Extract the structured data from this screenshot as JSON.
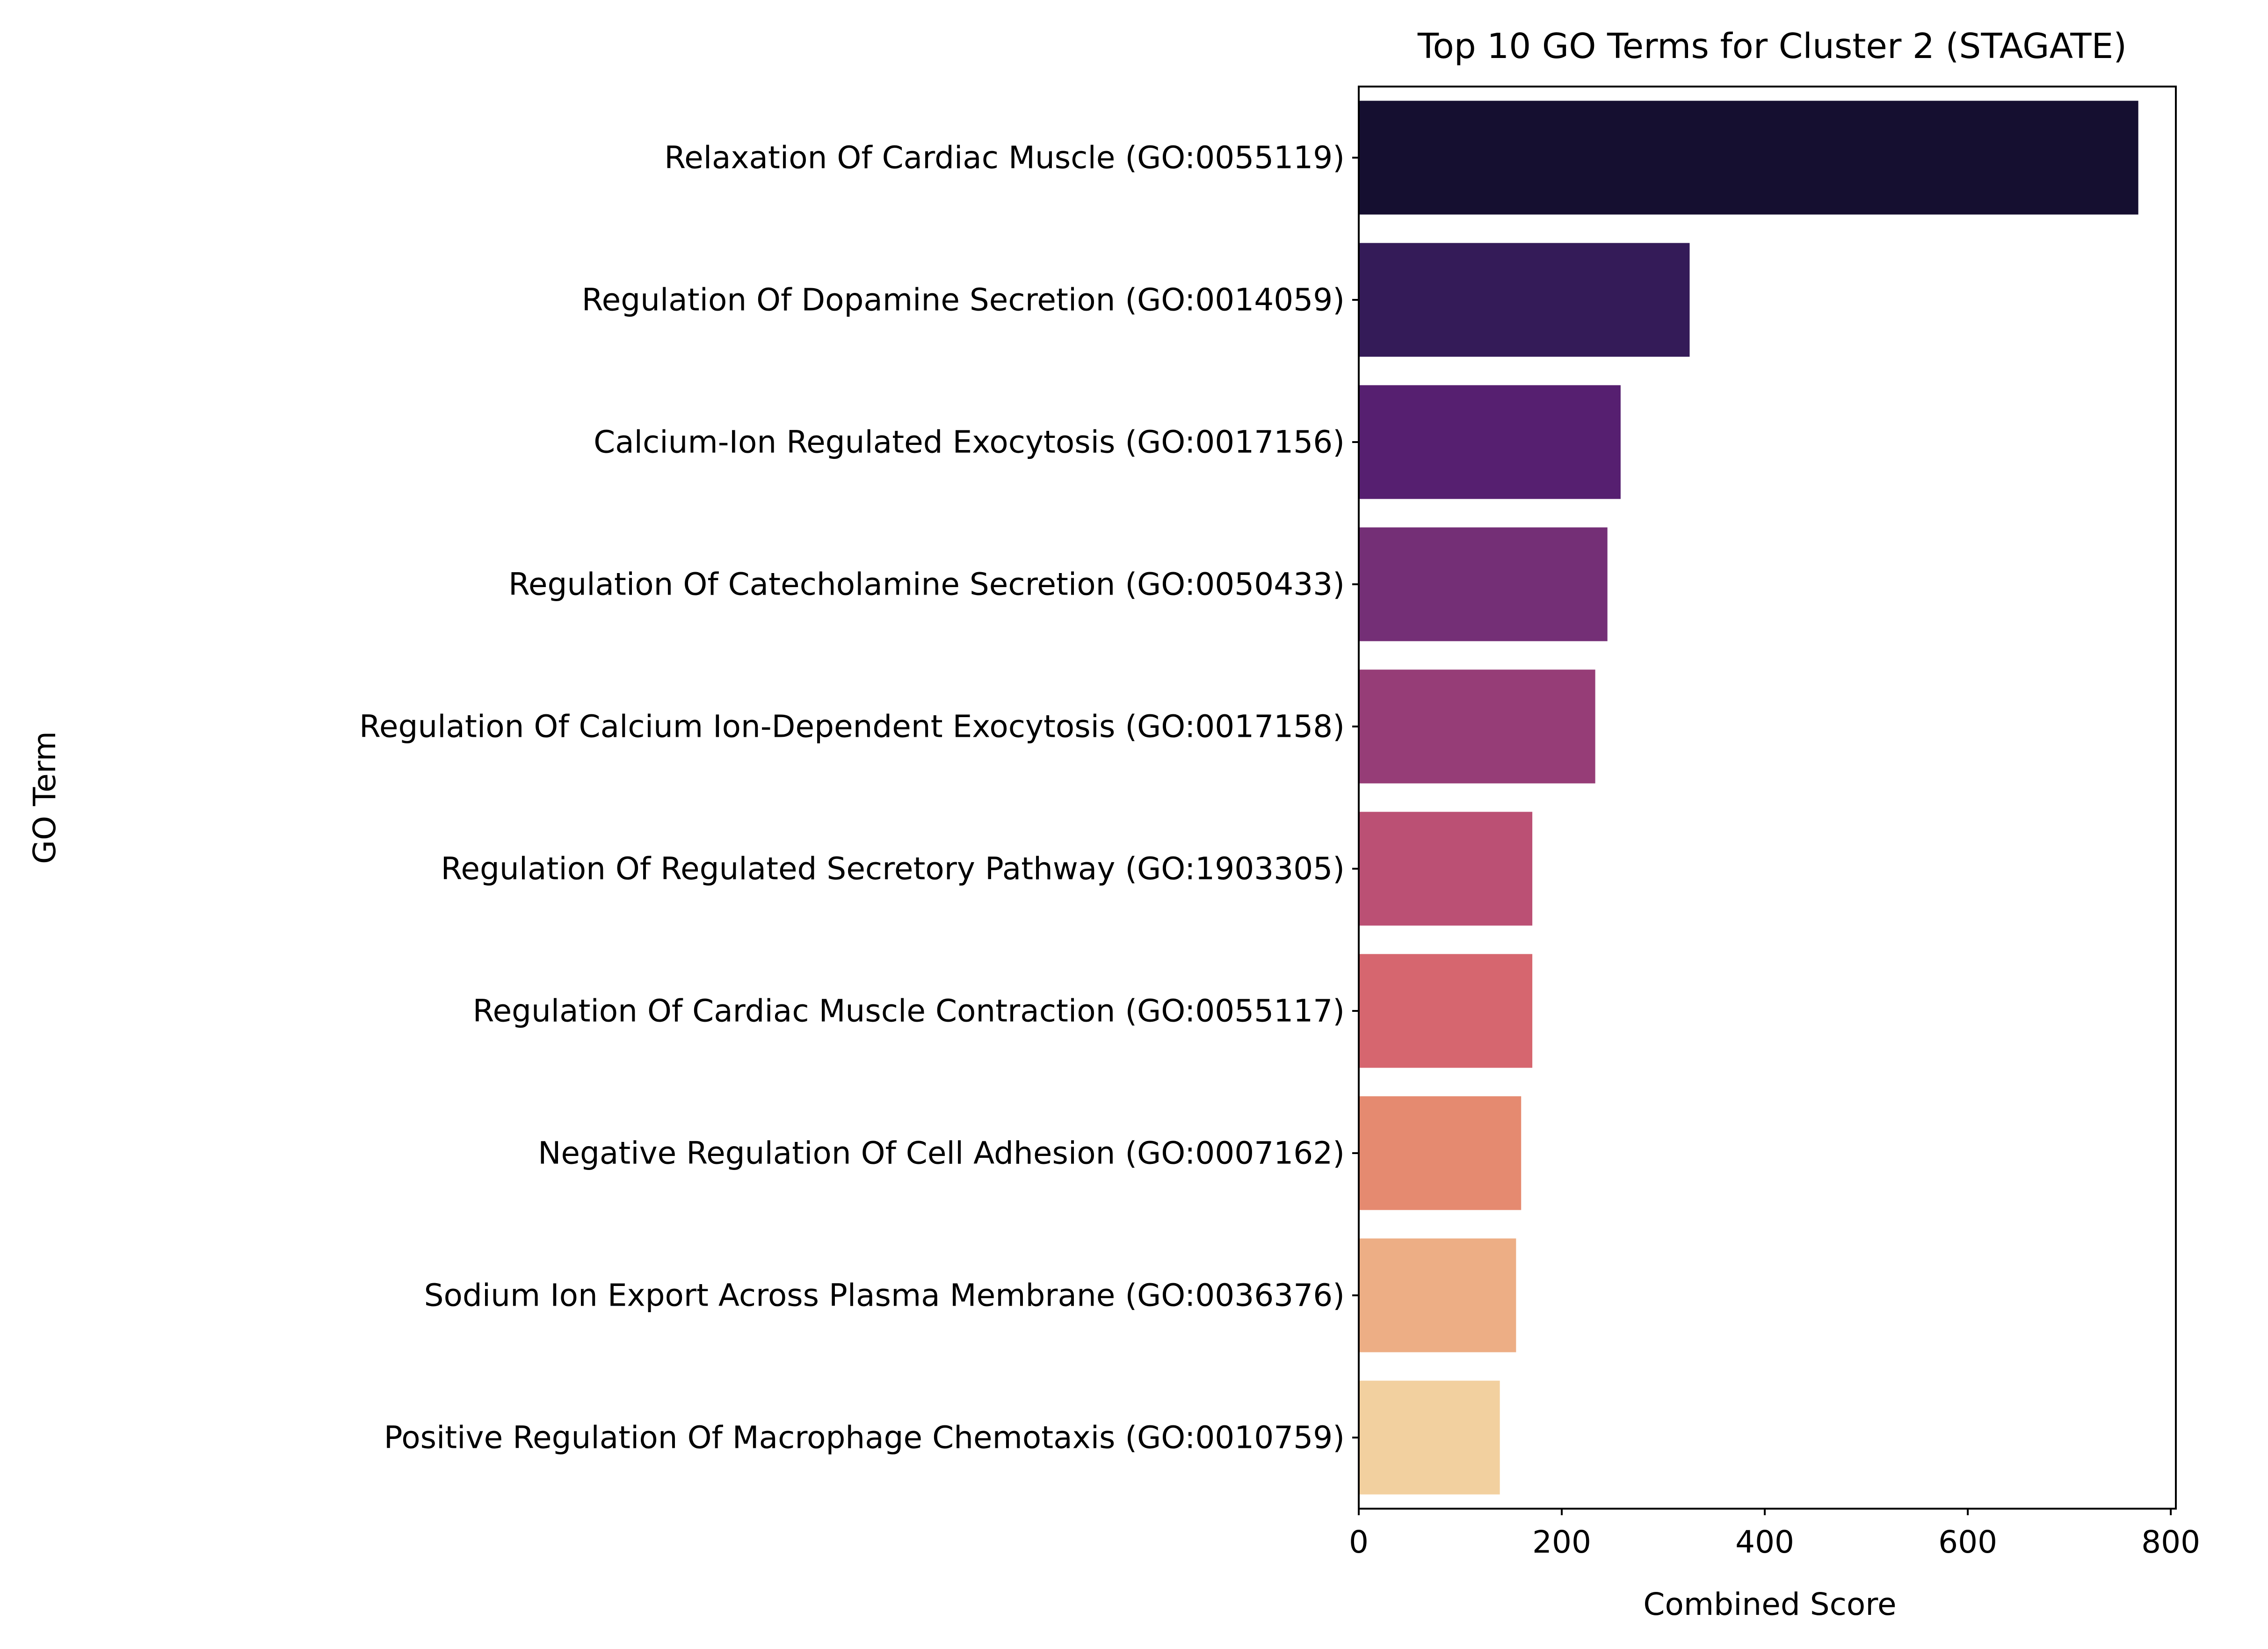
{
  "chart_data": {
    "type": "bar",
    "orientation": "horizontal",
    "title": "Top 10 GO Terms for Cluster 2 (STAGATE)",
    "xlabel": "Combined Score",
    "ylabel": "GO Term",
    "xlim": [
      0,
      805
    ],
    "xticks": [
      "0",
      "200",
      "400",
      "600",
      "800"
    ],
    "grid": false,
    "categories": [
      "Relaxation Of Cardiac Muscle (GO:0055119)",
      "Regulation Of Dopamine Secretion (GO:0014059)",
      "Calcium-Ion Regulated Exocytosis (GO:0017156)",
      "Regulation Of Catecholamine Secretion (GO:0050433)",
      "Regulation Of Calcium Ion-Dependent Exocytosis (GO:0017158)",
      "Regulation Of Regulated Secretory Pathway (GO:1903305)",
      "Regulation Of Cardiac Muscle Contraction (GO:0055117)",
      "Negative Regulation Of Cell Adhesion (GO:0007162)",
      "Sodium Ion Export Across Plasma Membrane (GO:0036376)",
      "Positive Regulation Of Macrophage Chemotaxis (GO:0010759)"
    ],
    "values": [
      768,
      326,
      258,
      245,
      233,
      171,
      171,
      160,
      155,
      139
    ],
    "colors": [
      "#150f30",
      "#341b58",
      "#561f70",
      "#742f76",
      "#963d77",
      "#bb5074",
      "#d6666f",
      "#e58a70",
      "#edae85",
      "#f2d09f"
    ]
  }
}
